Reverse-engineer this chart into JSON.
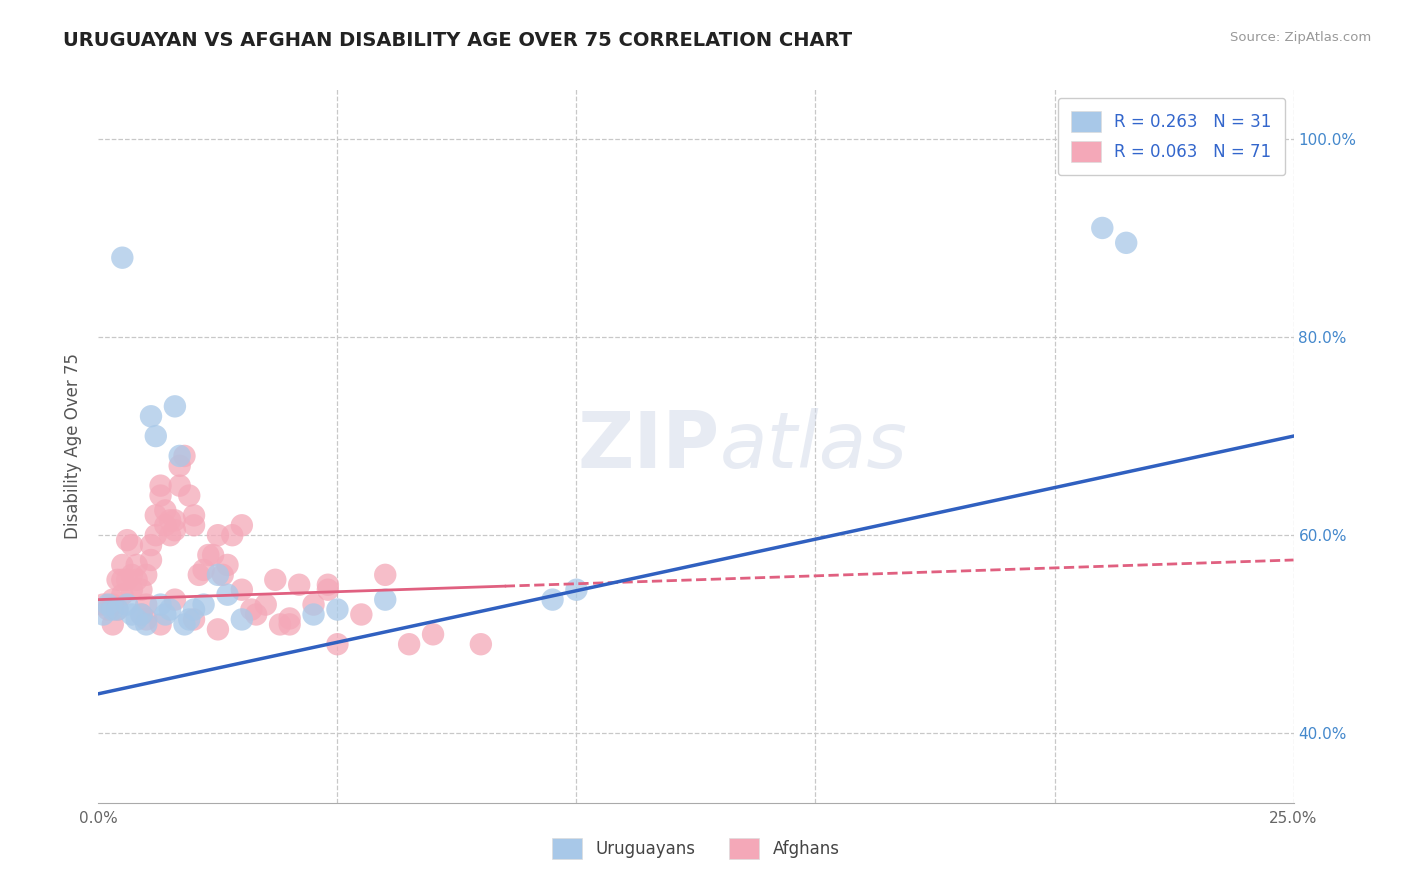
{
  "title": "URUGUAYAN VS AFGHAN DISABILITY AGE OVER 75 CORRELATION CHART",
  "source_text": "Source: ZipAtlas.com",
  "ylabel": "Disability Age Over 75",
  "xlim": [
    0.0,
    0.25
  ],
  "ylim": [
    0.33,
    1.05
  ],
  "xtick_positions": [
    0.0,
    0.05,
    0.1,
    0.15,
    0.2,
    0.25
  ],
  "xticklabels": [
    "0.0%",
    "",
    "",
    "",
    "",
    "25.0%"
  ],
  "ytick_positions": [
    0.4,
    0.6,
    0.8,
    1.0
  ],
  "yticklabels_right": [
    "40.0%",
    "60.0%",
    "80.0%",
    "100.0%"
  ],
  "uruguayan_R": 0.263,
  "uruguayan_N": 31,
  "afghan_R": 0.063,
  "afghan_N": 71,
  "uruguayan_color": "#a8c8e8",
  "afghan_color": "#f4a8b8",
  "uruguayan_line_color": "#3060c0",
  "afghan_line_color": "#e06080",
  "background_color": "#ffffff",
  "grid_color": "#c8c8c8",
  "watermark": "ZIPatlas",
  "legend_R_color": "#3366cc",
  "uruguayan_x": [
    0.001,
    0.002,
    0.003,
    0.004,
    0.005,
    0.006,
    0.007,
    0.008,
    0.009,
    0.01,
    0.011,
    0.012,
    0.013,
    0.014,
    0.015,
    0.016,
    0.017,
    0.018,
    0.019,
    0.02,
    0.022,
    0.025,
    0.027,
    0.03,
    0.045,
    0.05,
    0.06,
    0.095,
    0.1,
    0.21,
    0.215
  ],
  "uruguayan_y": [
    0.52,
    0.53,
    0.525,
    0.525,
    0.88,
    0.53,
    0.52,
    0.515,
    0.52,
    0.51,
    0.72,
    0.7,
    0.53,
    0.52,
    0.525,
    0.73,
    0.68,
    0.51,
    0.515,
    0.525,
    0.53,
    0.56,
    0.54,
    0.515,
    0.52,
    0.525,
    0.535,
    0.535,
    0.545,
    0.91,
    0.895
  ],
  "afghan_x": [
    0.001,
    0.002,
    0.003,
    0.003,
    0.004,
    0.004,
    0.005,
    0.005,
    0.006,
    0.006,
    0.007,
    0.007,
    0.008,
    0.008,
    0.009,
    0.009,
    0.01,
    0.01,
    0.011,
    0.011,
    0.012,
    0.012,
    0.013,
    0.013,
    0.014,
    0.014,
    0.015,
    0.015,
    0.016,
    0.016,
    0.017,
    0.017,
    0.018,
    0.019,
    0.02,
    0.02,
    0.021,
    0.022,
    0.023,
    0.024,
    0.025,
    0.026,
    0.027,
    0.028,
    0.03,
    0.032,
    0.033,
    0.035,
    0.037,
    0.038,
    0.04,
    0.042,
    0.045,
    0.048,
    0.05,
    0.055,
    0.06,
    0.065,
    0.07,
    0.08,
    0.003,
    0.005,
    0.007,
    0.01,
    0.013,
    0.016,
    0.02,
    0.025,
    0.03,
    0.04,
    0.048
  ],
  "afghan_y": [
    0.53,
    0.525,
    0.53,
    0.535,
    0.525,
    0.555,
    0.54,
    0.57,
    0.555,
    0.595,
    0.56,
    0.59,
    0.555,
    0.57,
    0.52,
    0.545,
    0.53,
    0.56,
    0.575,
    0.59,
    0.6,
    0.62,
    0.65,
    0.64,
    0.625,
    0.61,
    0.6,
    0.615,
    0.615,
    0.605,
    0.67,
    0.65,
    0.68,
    0.64,
    0.62,
    0.61,
    0.56,
    0.565,
    0.58,
    0.58,
    0.6,
    0.56,
    0.57,
    0.6,
    0.61,
    0.525,
    0.52,
    0.53,
    0.555,
    0.51,
    0.516,
    0.55,
    0.53,
    0.55,
    0.49,
    0.52,
    0.56,
    0.49,
    0.5,
    0.49,
    0.51,
    0.555,
    0.545,
    0.515,
    0.51,
    0.535,
    0.515,
    0.505,
    0.545,
    0.51,
    0.545
  ]
}
